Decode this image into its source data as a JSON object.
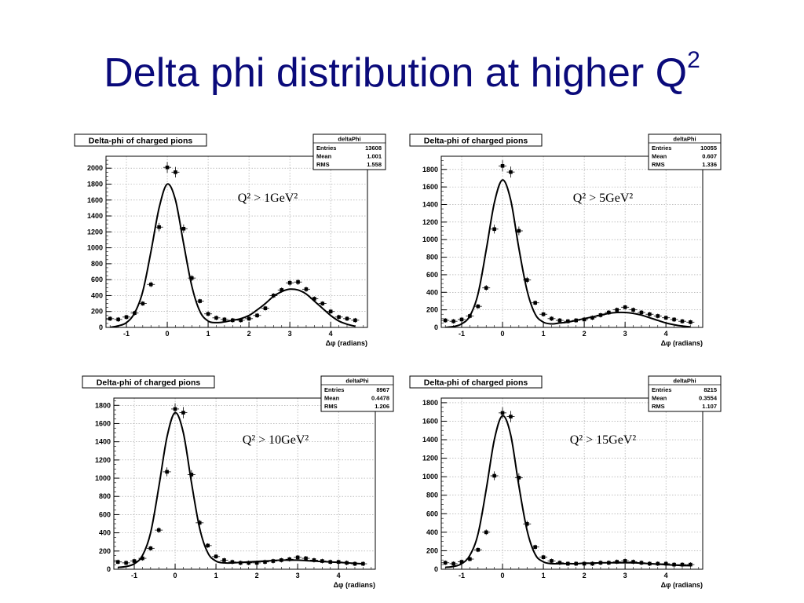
{
  "slide": {
    "title": "Delta phi distribution at higher Q",
    "title_sup": "2"
  },
  "colors": {
    "title": "#0a0a7a",
    "axis": "#000000",
    "grid": "#9a9a9a",
    "markers": "#000000"
  },
  "chart_data": [
    {
      "type": "scatter",
      "title": "Delta-phi of charged pions",
      "xlabel": "Δφ (radians)",
      "ylabel": "",
      "xlim": [
        -1.5,
        4.9
      ],
      "ylim": [
        0,
        2150
      ],
      "yticks": [
        0,
        200,
        400,
        600,
        800,
        1000,
        1200,
        1400,
        1600,
        1800,
        2000
      ],
      "xticks": [
        -1,
        0,
        1,
        2,
        3,
        4
      ],
      "grid": true,
      "annotation": "Q² > 1GeV²",
      "stats": {
        "name": "deltaPhi",
        "entries": "13608",
        "mean": "1.001",
        "rms": "1.558"
      },
      "series": [
        {
          "kind": "points",
          "x": [
            -1.4,
            -1.2,
            -1.0,
            -0.8,
            -0.6,
            -0.4,
            -0.2,
            0.0,
            0.2,
            0.4,
            0.6,
            0.8,
            1.0,
            1.2,
            1.4,
            1.6,
            1.8,
            2.0,
            2.2,
            2.4,
            2.6,
            2.8,
            3.0,
            3.2,
            3.4,
            3.6,
            3.8,
            4.0,
            4.2,
            4.4,
            4.6
          ],
          "y": [
            110,
            100,
            130,
            180,
            300,
            540,
            1260,
            2010,
            1950,
            1240,
            620,
            330,
            170,
            120,
            100,
            90,
            90,
            110,
            150,
            240,
            400,
            470,
            560,
            570,
            480,
            360,
            300,
            200,
            130,
            110,
            90
          ]
        },
        {
          "kind": "fit",
          "x": [
            -1.4,
            -1.2,
            -1.0,
            -0.8,
            -0.6,
            -0.4,
            -0.2,
            0.0,
            0.2,
            0.4,
            0.6,
            0.8,
            1.0,
            1.2,
            1.4,
            1.6,
            1.8,
            2.0,
            2.2,
            2.4,
            2.6,
            2.8,
            3.0,
            3.2,
            3.4,
            3.6,
            3.8,
            4.0,
            4.2,
            4.4,
            4.6
          ],
          "y": [
            0,
            20,
            60,
            180,
            450,
            950,
            1500,
            1800,
            1600,
            1050,
            520,
            200,
            80,
            60,
            70,
            90,
            110,
            150,
            220,
            300,
            390,
            450,
            480,
            470,
            420,
            330,
            240,
            150,
            80,
            40,
            15
          ]
        }
      ]
    },
    {
      "type": "scatter",
      "title": "Delta-phi of charged pions",
      "xlabel": "Δφ (radians)",
      "ylabel": "",
      "xlim": [
        -1.5,
        4.9
      ],
      "ylim": [
        0,
        1950
      ],
      "yticks": [
        0,
        200,
        400,
        600,
        800,
        1000,
        1200,
        1400,
        1600,
        1800
      ],
      "xticks": [
        -1,
        0,
        1,
        2,
        3,
        4
      ],
      "grid": true,
      "annotation": "Q² > 5GeV²",
      "stats": {
        "name": "deltaPhi",
        "entries": "10055",
        "mean": "0.607",
        "rms": "1.336"
      },
      "series": [
        {
          "kind": "points",
          "x": [
            -1.4,
            -1.2,
            -1.0,
            -0.8,
            -0.6,
            -0.4,
            -0.2,
            0.0,
            0.2,
            0.4,
            0.6,
            0.8,
            1.0,
            1.2,
            1.4,
            1.6,
            1.8,
            2.0,
            2.2,
            2.4,
            2.6,
            2.8,
            3.0,
            3.2,
            3.4,
            3.6,
            3.8,
            4.0,
            4.2,
            4.4,
            4.6
          ],
          "y": [
            80,
            70,
            90,
            130,
            240,
            450,
            1120,
            1840,
            1770,
            1100,
            540,
            280,
            150,
            100,
            80,
            70,
            80,
            90,
            110,
            140,
            170,
            200,
            230,
            200,
            170,
            150,
            130,
            110,
            90,
            70,
            60
          ]
        },
        {
          "kind": "fit",
          "x": [
            -1.4,
            -1.2,
            -1.0,
            -0.8,
            -0.6,
            -0.4,
            -0.2,
            0.0,
            0.2,
            0.4,
            0.6,
            0.8,
            1.0,
            1.2,
            1.4,
            1.6,
            1.8,
            2.0,
            2.2,
            2.4,
            2.6,
            2.8,
            3.0,
            3.2,
            3.4,
            3.6,
            3.8,
            4.0,
            4.2,
            4.4,
            4.6
          ],
          "y": [
            0,
            10,
            40,
            130,
            380,
            880,
            1420,
            1680,
            1450,
            900,
            420,
            150,
            60,
            40,
            50,
            60,
            80,
            100,
            120,
            140,
            160,
            170,
            170,
            160,
            140,
            110,
            80,
            50,
            30,
            15,
            5
          ]
        }
      ]
    },
    {
      "type": "scatter",
      "title": "Delta-phi of charged pions",
      "xlabel": "Δφ (radians)",
      "ylabel": "",
      "xlim": [
        -1.5,
        4.9
      ],
      "ylim": [
        0,
        1880
      ],
      "yticks": [
        0,
        200,
        400,
        600,
        800,
        1000,
        1200,
        1400,
        1600,
        1800
      ],
      "xticks": [
        -1,
        0,
        1,
        2,
        3,
        4
      ],
      "grid": true,
      "annotation": "Q² > 10GeV²",
      "stats": {
        "name": "deltaPhi",
        "entries": "8967",
        "mean": "0.4478",
        "rms": "1.206"
      },
      "series": [
        {
          "kind": "points",
          "x": [
            -1.4,
            -1.2,
            -1.0,
            -0.8,
            -0.6,
            -0.4,
            -0.2,
            0.0,
            0.2,
            0.4,
            0.6,
            0.8,
            1.0,
            1.2,
            1.4,
            1.6,
            1.8,
            2.0,
            2.2,
            2.4,
            2.6,
            2.8,
            3.0,
            3.2,
            3.4,
            3.6,
            3.8,
            4.0,
            4.2,
            4.4,
            4.6
          ],
          "y": [
            80,
            70,
            90,
            120,
            230,
            430,
            1070,
            1760,
            1720,
            1040,
            510,
            260,
            140,
            100,
            80,
            70,
            70,
            70,
            80,
            90,
            100,
            110,
            130,
            120,
            100,
            90,
            80,
            80,
            70,
            60,
            60
          ]
        },
        {
          "kind": "fit",
          "x": [
            -1.4,
            -1.2,
            -1.0,
            -0.8,
            -0.6,
            -0.4,
            -0.2,
            0.0,
            0.2,
            0.4,
            0.6,
            0.8,
            1.0,
            1.2,
            1.4,
            1.6,
            1.8,
            2.0,
            2.2,
            2.4,
            2.6,
            2.8,
            3.0,
            3.2,
            3.4,
            3.6,
            3.8,
            4.0,
            4.2,
            4.4,
            4.6
          ],
          "y": [
            20,
            30,
            60,
            150,
            400,
            900,
            1450,
            1720,
            1500,
            950,
            450,
            180,
            90,
            70,
            70,
            75,
            80,
            85,
            90,
            95,
            100,
            100,
            100,
            95,
            90,
            85,
            80,
            75,
            70,
            65,
            60
          ]
        }
      ]
    },
    {
      "type": "scatter",
      "title": "Delta-phi of charged pions",
      "xlabel": "Δφ (radians)",
      "ylabel": "",
      "xlim": [
        -1.5,
        4.9
      ],
      "ylim": [
        0,
        1850
      ],
      "yticks": [
        0,
        200,
        400,
        600,
        800,
        1000,
        1200,
        1400,
        1600,
        1800
      ],
      "xticks": [
        -1,
        0,
        1,
        2,
        3,
        4
      ],
      "grid": true,
      "annotation": "Q² > 15GeV²",
      "stats": {
        "name": "deltaPhi",
        "entries": "8215",
        "mean": "0.3554",
        "rms": "1.107"
      },
      "series": [
        {
          "kind": "points",
          "x": [
            -1.4,
            -1.2,
            -1.0,
            -0.8,
            -0.6,
            -0.4,
            -0.2,
            0.0,
            0.2,
            0.4,
            0.6,
            0.8,
            1.0,
            1.2,
            1.4,
            1.6,
            1.8,
            2.0,
            2.2,
            2.4,
            2.6,
            2.8,
            3.0,
            3.2,
            3.4,
            3.6,
            3.8,
            4.0,
            4.2,
            4.4,
            4.6
          ],
          "y": [
            70,
            60,
            80,
            110,
            210,
            400,
            1010,
            1690,
            1650,
            990,
            490,
            240,
            130,
            90,
            70,
            60,
            60,
            60,
            60,
            70,
            70,
            80,
            90,
            80,
            70,
            60,
            60,
            60,
            50,
            50,
            50
          ]
        },
        {
          "kind": "fit",
          "x": [
            -1.4,
            -1.2,
            -1.0,
            -0.8,
            -0.6,
            -0.4,
            -0.2,
            0.0,
            0.2,
            0.4,
            0.6,
            0.8,
            1.0,
            1.2,
            1.4,
            1.6,
            1.8,
            2.0,
            2.2,
            2.4,
            2.6,
            2.8,
            3.0,
            3.2,
            3.4,
            3.6,
            3.8,
            4.0,
            4.2,
            4.4,
            4.6
          ],
          "y": [
            20,
            30,
            60,
            150,
            380,
            860,
            1400,
            1660,
            1450,
            900,
            420,
            160,
            80,
            60,
            60,
            60,
            60,
            65,
            65,
            70,
            70,
            70,
            70,
            70,
            65,
            60,
            55,
            50,
            45,
            40,
            40
          ]
        }
      ]
    }
  ]
}
